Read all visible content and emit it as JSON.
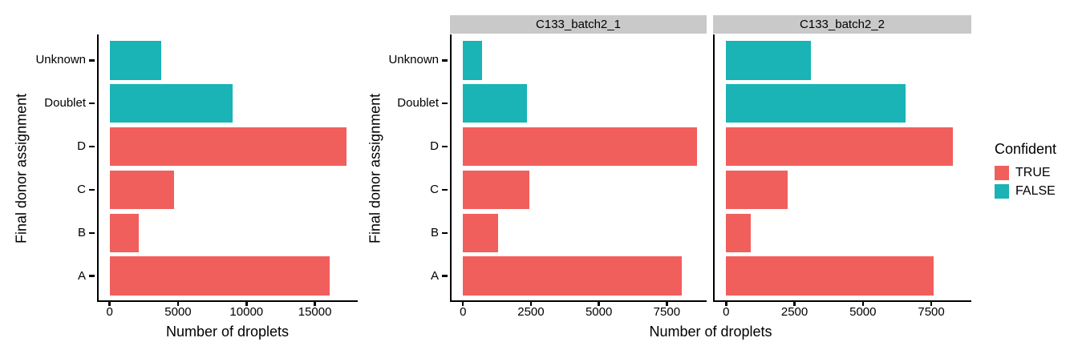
{
  "legend": {
    "title": "Confident",
    "items": [
      {
        "label": "TRUE",
        "color": "#f15f5d"
      },
      {
        "label": "FALSE",
        "color": "#1ab3b6"
      }
    ]
  },
  "colors": {
    "confident_true": "#f15f5d",
    "confident_false": "#1ab3b6",
    "facet_strip_background": "#c9c9c9",
    "axis": "#000000"
  },
  "chart_data": [
    {
      "type": "bar",
      "orientation": "horizontal",
      "title": "",
      "categories": [
        "Unknown",
        "Doublet",
        "D",
        "C",
        "B",
        "A"
      ],
      "values": [
        3800,
        9000,
        17300,
        4700,
        2150,
        16100
      ],
      "confident": [
        false,
        false,
        true,
        true,
        true,
        true
      ],
      "xlabel": "Number of droplets",
      "ylabel": "Final donor assignment",
      "xticks": [
        0,
        5000,
        10000,
        15000
      ],
      "xlim": [
        -800,
        18100
      ],
      "grid": false
    },
    {
      "type": "bar",
      "orientation": "horizontal",
      "facet": "C133_batch2_1",
      "categories": [
        "Unknown",
        "Doublet",
        "D",
        "C",
        "B",
        "A"
      ],
      "values": [
        700,
        2350,
        8600,
        2450,
        1300,
        8050
      ],
      "confident": [
        false,
        false,
        true,
        true,
        true,
        true
      ],
      "xlabel": "Number of droplets",
      "ylabel": "Final donor assignment",
      "xticks": [
        0,
        2500,
        5000,
        7500
      ],
      "xlim": [
        -420,
        8950
      ],
      "grid": false
    },
    {
      "type": "bar",
      "orientation": "horizontal",
      "facet": "C133_batch2_2",
      "categories": [
        "Unknown",
        "Doublet",
        "D",
        "C",
        "B",
        "A"
      ],
      "values": [
        3100,
        6550,
        8300,
        2250,
        900,
        7600
      ],
      "confident": [
        false,
        false,
        true,
        true,
        true,
        true
      ],
      "xlabel": "Number of droplets",
      "ylabel": "Final donor assignment",
      "xticks": [
        0,
        2500,
        5000,
        7500
      ],
      "xlim": [
        -420,
        8950
      ],
      "grid": false
    }
  ]
}
